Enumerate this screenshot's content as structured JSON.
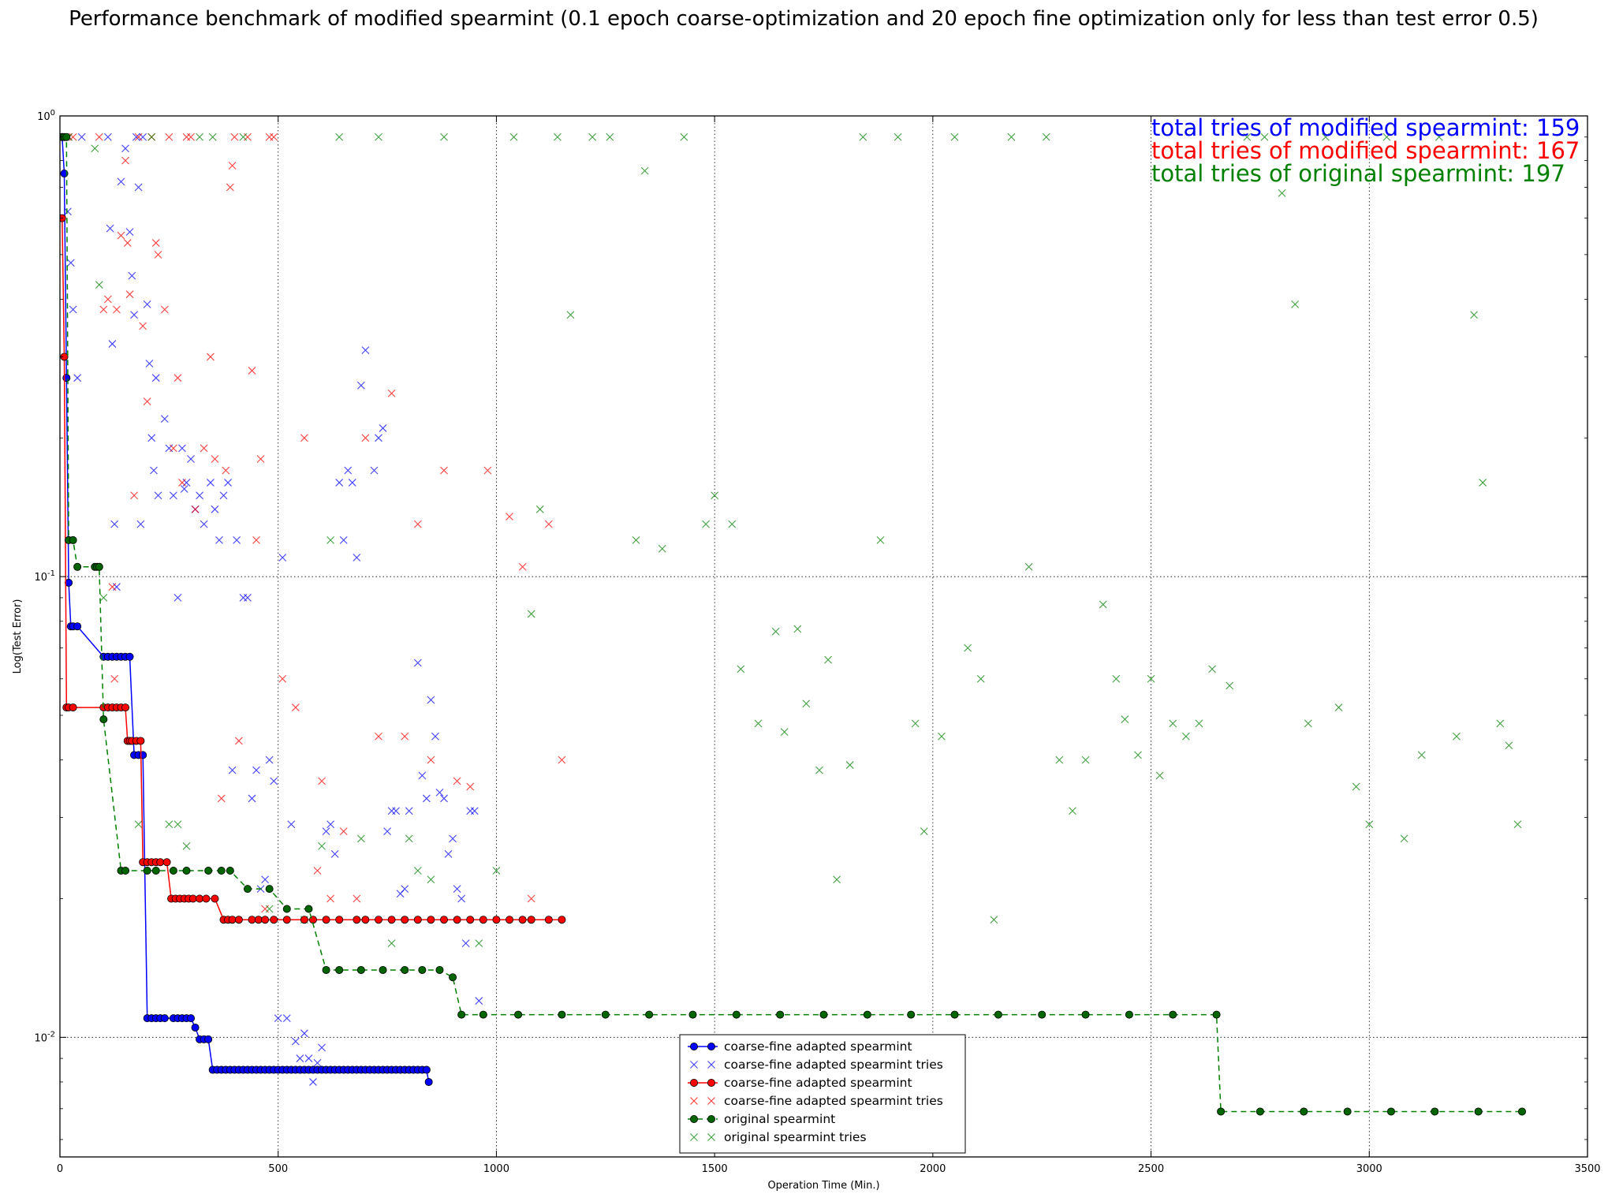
{
  "chart_data": {
    "type": "scatter",
    "title": "Performance benchmark of modified spearmint (0.1 epoch coarse-optimization and 20 epoch fine optimization only for less than test error 0.5)",
    "xlabel": "Operation Time (Min.)",
    "ylabel": "Log(Test Error)",
    "xlim": [
      0,
      3500
    ],
    "ylim": [
      0.0055,
      1
    ],
    "yscale": "log",
    "xticks": [
      0,
      500,
      1000,
      1500,
      2000,
      2500,
      3000,
      3500
    ],
    "xtick_labels": [
      "0",
      "500",
      "1000",
      "1500",
      "2000",
      "2500",
      "3000",
      "3500"
    ],
    "yticks": [
      0.01,
      0.1,
      1
    ],
    "ytick_labels": [
      "10^-2",
      "10^-1",
      "10^0"
    ],
    "grid": true,
    "legend_position": "bottom-center",
    "annotations": [
      {
        "text": "total tries of modified spearmint: 159",
        "color": "#0000ff"
      },
      {
        "text": "total tries of modified spearmint: 167",
        "color": "#ff0000"
      },
      {
        "text": "total tries of original spearmint: 197",
        "color": "#008000"
      }
    ],
    "series": [
      {
        "name": "coarse-fine adapted spearmint",
        "kind": "best",
        "color": "#0000ff",
        "linestyle": "solid",
        "x": [
          5,
          10,
          15,
          20,
          25,
          30,
          40,
          100,
          110,
          120,
          130,
          140,
          150,
          160,
          170,
          180,
          190,
          200,
          210,
          220,
          230,
          240,
          260,
          270,
          280,
          290,
          300,
          310,
          320,
          330,
          340,
          350,
          360,
          370,
          380,
          390,
          400,
          410,
          420,
          430,
          440,
          450,
          460,
          470,
          480,
          490,
          500,
          510,
          520,
          530,
          540,
          550,
          560,
          570,
          580,
          590,
          600,
          610,
          620,
          630,
          640,
          650,
          660,
          670,
          680,
          690,
          700,
          710,
          720,
          730,
          740,
          750,
          760,
          770,
          780,
          790,
          800,
          810,
          820,
          830,
          840,
          845
        ],
        "y": [
          0.9,
          0.75,
          0.27,
          0.097,
          0.078,
          0.078,
          0.078,
          0.067,
          0.067,
          0.067,
          0.067,
          0.067,
          0.067,
          0.067,
          0.041,
          0.041,
          0.041,
          0.011,
          0.011,
          0.011,
          0.011,
          0.011,
          0.011,
          0.011,
          0.011,
          0.011,
          0.011,
          0.0105,
          0.0099,
          0.0099,
          0.0099,
          0.0085,
          0.0085,
          0.0085,
          0.0085,
          0.0085,
          0.0085,
          0.0085,
          0.0085,
          0.0085,
          0.0085,
          0.0085,
          0.0085,
          0.0085,
          0.0085,
          0.0085,
          0.0085,
          0.0085,
          0.0085,
          0.0085,
          0.0085,
          0.0085,
          0.0085,
          0.0085,
          0.0085,
          0.0085,
          0.0085,
          0.0085,
          0.0085,
          0.0085,
          0.0085,
          0.0085,
          0.0085,
          0.0085,
          0.0085,
          0.0085,
          0.0085,
          0.0085,
          0.0085,
          0.0085,
          0.0085,
          0.0085,
          0.0085,
          0.0085,
          0.0085,
          0.0085,
          0.0085,
          0.0085,
          0.0085,
          0.0085,
          0.0085,
          0.008
        ]
      },
      {
        "name": "coarse-fine adapted spearmint tries",
        "kind": "tries",
        "color": "#0000ff",
        "x": [
          12,
          18,
          25,
          30,
          40,
          50,
          110,
          115,
          120,
          125,
          130,
          140,
          150,
          160,
          165,
          170,
          175,
          180,
          185,
          190,
          200,
          205,
          210,
          215,
          220,
          225,
          240,
          250,
          260,
          270,
          280,
          285,
          290,
          300,
          310,
          320,
          330,
          345,
          355,
          365,
          375,
          385,
          395,
          405,
          420,
          430,
          440,
          450,
          460,
          470,
          480,
          490,
          500,
          510,
          520,
          530,
          540,
          550,
          560,
          570,
          580,
          590,
          600,
          610,
          620,
          630,
          640,
          650,
          660,
          670,
          680,
          690,
          700,
          720,
          730,
          740,
          750,
          760,
          770,
          780,
          790,
          800,
          810,
          820,
          830,
          840,
          850,
          860,
          870,
          880,
          890,
          900,
          910,
          920,
          930,
          940,
          950,
          960
        ],
        "y": [
          0.9,
          0.62,
          0.48,
          0.38,
          0.27,
          0.9,
          0.9,
          0.57,
          0.32,
          0.13,
          0.095,
          0.72,
          0.85,
          0.56,
          0.45,
          0.37,
          0.9,
          0.7,
          0.13,
          0.9,
          0.39,
          0.29,
          0.2,
          0.17,
          0.27,
          0.15,
          0.22,
          0.19,
          0.15,
          0.09,
          0.19,
          0.155,
          0.16,
          0.18,
          0.14,
          0.15,
          0.13,
          0.16,
          0.14,
          0.12,
          0.15,
          0.16,
          0.038,
          0.12,
          0.09,
          0.09,
          0.033,
          0.038,
          0.021,
          0.022,
          0.04,
          0.036,
          0.011,
          0.11,
          0.011,
          0.029,
          0.0098,
          0.009,
          0.0102,
          0.009,
          0.008,
          0.0088,
          0.0095,
          0.028,
          0.029,
          0.025,
          0.16,
          0.12,
          0.17,
          0.16,
          0.11,
          0.26,
          0.31,
          0.17,
          0.2,
          0.21,
          0.028,
          0.031,
          0.031,
          0.0205,
          0.021,
          0.031,
          0.0085,
          0.065,
          0.037,
          0.033,
          0.054,
          0.045,
          0.034,
          0.033,
          0.025,
          0.027,
          0.021,
          0.02,
          0.016,
          0.031,
          0.031,
          0.012
        ],
        "note_range": "x up to ~840"
      },
      {
        "name": "coarse-fine adapted spearmint",
        "kind": "best",
        "color": "#ff0000",
        "linestyle": "solid",
        "x": [
          5,
          10,
          15,
          20,
          30,
          100,
          110,
          120,
          130,
          140,
          150,
          155,
          160,
          165,
          175,
          185,
          190,
          200,
          210,
          220,
          230,
          245,
          255,
          265,
          275,
          285,
          295,
          305,
          320,
          335,
          355,
          375,
          385,
          395,
          410,
          440,
          455,
          470,
          490,
          520,
          560,
          580,
          610,
          640,
          680,
          700,
          730,
          760,
          790,
          820,
          850,
          880,
          910,
          940,
          970,
          1000,
          1030,
          1060,
          1080,
          1120,
          1150
        ],
        "y": [
          0.6,
          0.3,
          0.052,
          0.052,
          0.052,
          0.052,
          0.052,
          0.052,
          0.052,
          0.052,
          0.052,
          0.044,
          0.044,
          0.044,
          0.044,
          0.044,
          0.024,
          0.024,
          0.024,
          0.024,
          0.024,
          0.024,
          0.02,
          0.02,
          0.02,
          0.02,
          0.02,
          0.02,
          0.02,
          0.02,
          0.02,
          0.018,
          0.018,
          0.018,
          0.018,
          0.018,
          0.018,
          0.018,
          0.018,
          0.018,
          0.018,
          0.018,
          0.018,
          0.018,
          0.018,
          0.018,
          0.018,
          0.018,
          0.018,
          0.018,
          0.018,
          0.018,
          0.018,
          0.018,
          0.018,
          0.018,
          0.018,
          0.018,
          0.018,
          0.018,
          0.018
        ]
      },
      {
        "name": "coarse-fine adapted spearmint tries",
        "kind": "tries",
        "color": "#ff0000",
        "x": [
          20,
          30,
          90,
          100,
          110,
          120,
          125,
          130,
          140,
          150,
          155,
          160,
          170,
          180,
          190,
          200,
          210,
          220,
          225,
          240,
          250,
          260,
          270,
          280,
          290,
          300,
          310,
          330,
          345,
          355,
          370,
          380,
          390,
          395,
          400,
          410,
          430,
          440,
          450,
          460,
          470,
          480,
          490,
          510,
          540,
          560,
          590,
          600,
          620,
          650,
          680,
          700,
          730,
          760,
          790,
          820,
          850,
          880,
          910,
          940,
          980,
          1030,
          1060,
          1080,
          1120,
          1150
        ],
        "y": [
          0.9,
          0.9,
          0.9,
          0.38,
          0.4,
          0.095,
          0.06,
          0.38,
          0.55,
          0.8,
          0.53,
          0.41,
          0.15,
          0.9,
          0.35,
          0.24,
          0.9,
          0.53,
          0.5,
          0.38,
          0.9,
          0.19,
          0.27,
          0.16,
          0.9,
          0.9,
          0.14,
          0.19,
          0.3,
          0.18,
          0.033,
          0.17,
          0.7,
          0.78,
          0.9,
          0.044,
          0.9,
          0.28,
          0.12,
          0.18,
          0.019,
          0.9,
          0.9,
          0.06,
          0.052,
          0.2,
          0.023,
          0.036,
          0.02,
          0.028,
          0.02,
          0.2,
          0.045,
          0.25,
          0.045,
          0.13,
          0.04,
          0.17,
          0.036,
          0.035,
          0.17,
          0.135,
          0.105,
          0.02,
          0.13,
          0.04
        ],
        "note_range": "x up to ~1150"
      },
      {
        "name": "original spearmint",
        "kind": "best",
        "color": "#008000",
        "linestyle": "dashed",
        "x": [
          5,
          10,
          15,
          20,
          30,
          40,
          80,
          85,
          90,
          100,
          140,
          150,
          200,
          220,
          260,
          290,
          340,
          370,
          390,
          430,
          480,
          520,
          570,
          610,
          640,
          690,
          740,
          790,
          830,
          870,
          900,
          920,
          970,
          1050,
          1150,
          1250,
          1350,
          1450,
          1550,
          1650,
          1750,
          1850,
          1950,
          2050,
          2150,
          2250,
          2350,
          2450,
          2550,
          2650,
          2660,
          2750,
          2850,
          2950,
          3050,
          3150,
          3250,
          3350
        ],
        "y": [
          0.9,
          0.9,
          0.9,
          0.12,
          0.12,
          0.105,
          0.105,
          0.105,
          0.105,
          0.049,
          0.023,
          0.023,
          0.023,
          0.023,
          0.023,
          0.023,
          0.023,
          0.023,
          0.023,
          0.021,
          0.021,
          0.019,
          0.019,
          0.014,
          0.014,
          0.014,
          0.014,
          0.014,
          0.014,
          0.014,
          0.0135,
          0.0112,
          0.0112,
          0.0112,
          0.0112,
          0.0112,
          0.0112,
          0.0112,
          0.0112,
          0.0112,
          0.0112,
          0.0112,
          0.0112,
          0.0112,
          0.0112,
          0.0112,
          0.0112,
          0.0112,
          0.0112,
          0.0112,
          0.0069,
          0.0069,
          0.0069,
          0.0069,
          0.0069,
          0.0069,
          0.0069,
          0.0069
        ]
      },
      {
        "name": "original spearmint tries",
        "kind": "tries",
        "color": "#008000",
        "x": [
          20,
          80,
          90,
          100,
          180,
          210,
          250,
          270,
          290,
          320,
          350,
          420,
          480,
          560,
          600,
          620,
          640,
          690,
          730,
          760,
          800,
          820,
          850,
          880,
          960,
          1000,
          1040,
          1080,
          1100,
          1140,
          1170,
          1220,
          1260,
          1320,
          1340,
          1380,
          1430,
          1480,
          1500,
          1540,
          1560,
          1600,
          1640,
          1660,
          1690,
          1710,
          1740,
          1760,
          1780,
          1810,
          1840,
          1880,
          1920,
          1960,
          1980,
          2020,
          2050,
          2080,
          2110,
          2140,
          2180,
          2220,
          2260,
          2290,
          2320,
          2350,
          2390,
          2420,
          2440,
          2470,
          2500,
          2520,
          2550,
          2580,
          2610,
          2640,
          2680,
          2720,
          2760,
          2800,
          2830,
          2860,
          2900,
          2930,
          2970,
          3000,
          3040,
          3080,
          3120,
          3160,
          3200,
          3240,
          3260,
          3300,
          3320,
          3340
        ],
        "y": [
          0.9,
          0.85,
          0.43,
          0.09,
          0.029,
          0.9,
          0.029,
          0.029,
          0.026,
          0.9,
          0.9,
          0.9,
          0.019,
          0.018,
          0.026,
          0.12,
          0.9,
          0.027,
          0.9,
          0.016,
          0.027,
          0.023,
          0.022,
          0.9,
          0.016,
          0.023,
          0.9,
          0.083,
          0.14,
          0.9,
          0.37,
          0.9,
          0.9,
          0.12,
          0.76,
          0.115,
          0.9,
          0.13,
          0.15,
          0.13,
          0.063,
          0.048,
          0.076,
          0.046,
          0.077,
          0.053,
          0.038,
          0.066,
          0.022,
          0.039,
          0.9,
          0.12,
          0.9,
          0.048,
          0.028,
          0.045,
          0.9,
          0.07,
          0.06,
          0.018,
          0.9,
          0.105,
          0.9,
          0.04,
          0.031,
          0.04,
          0.087,
          0.06,
          0.049,
          0.041,
          0.06,
          0.037,
          0.048,
          0.045,
          0.048,
          0.063,
          0.058,
          0.9,
          0.9,
          0.68,
          0.39,
          0.048,
          0.9,
          0.052,
          0.035,
          0.029,
          0.9,
          0.027,
          0.041,
          0.9,
          0.045,
          0.37,
          0.16,
          0.048,
          0.043,
          0.029
        ],
        "note_range": "x up to ~3350"
      }
    ]
  }
}
